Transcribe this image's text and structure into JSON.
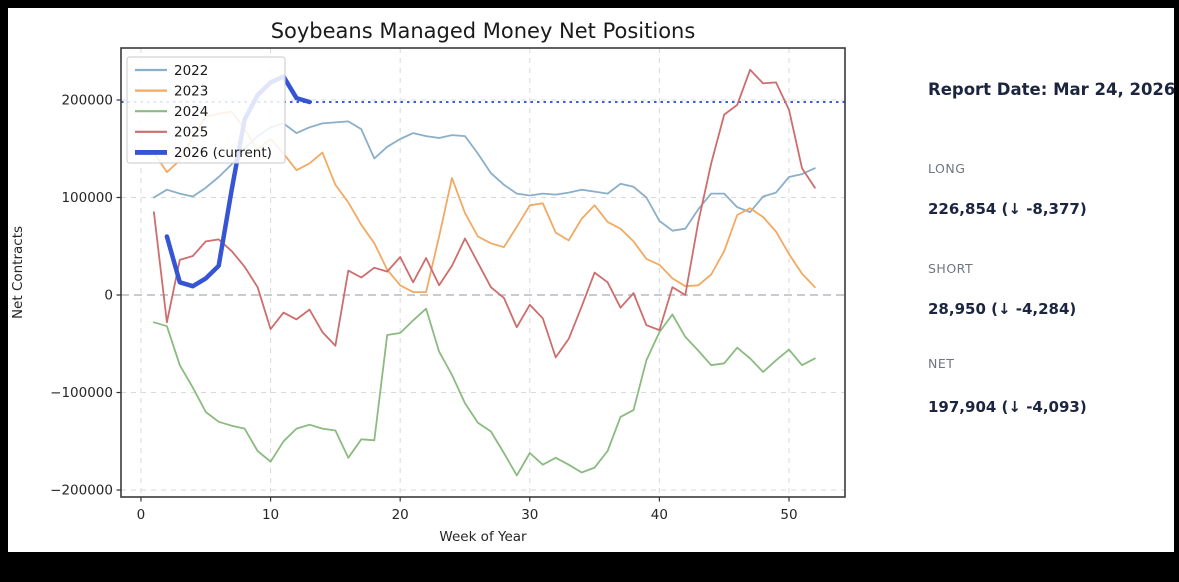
{
  "window": {
    "background": "#000000",
    "card_background": "#ffffff"
  },
  "chart_data": {
    "type": "line",
    "title": "Soybeans Managed Money Net Positions",
    "xlabel": "Week of Year",
    "ylabel": "Net Contracts",
    "x_ticks": [
      0,
      10,
      20,
      30,
      40,
      50
    ],
    "y_ticks": [
      200000,
      100000,
      0,
      -100000,
      -200000
    ],
    "y_tick_labels": [
      "200000",
      "100000",
      "0",
      "−100000",
      "−200000"
    ],
    "xlim": [
      -1.54,
      54.32
    ],
    "ylim": [
      -207179,
      253333
    ],
    "grid": true,
    "legend_position": "upper-left",
    "colors": {
      "grid": "#d9d9d9",
      "zero_line": "#a6adb5",
      "net_dotted_line": "#3c5ed8",
      "spine": "#3a3a3a",
      "tick_text": "#262626",
      "title_text": "#1a1a1a"
    },
    "reference_lines": [
      {
        "name": "zero",
        "value": 0,
        "style": "dashed",
        "color": "#a6adb5",
        "width": 1.3
      },
      {
        "name": "current-net",
        "value": 197904,
        "style": "dotted",
        "color": "#3c5ed8",
        "width": 2
      }
    ],
    "series": [
      {
        "name": "2022",
        "color": "#8aafc8",
        "width": 1.8,
        "start_week": 1,
        "values": [
          100000,
          108000,
          104000,
          101000,
          110000,
          121000,
          134000,
          150000,
          163000,
          172000,
          176000,
          166000,
          172000,
          176000,
          177000,
          178000,
          170000,
          140000,
          152000,
          160000,
          166000,
          163000,
          161000,
          164000,
          163000,
          145000,
          125000,
          113000,
          104000,
          102000,
          104000,
          103000,
          105000,
          108000,
          106000,
          104000,
          114000,
          111000,
          100000,
          76000,
          66000,
          68000,
          88000,
          104000,
          104000,
          90000,
          85000,
          101000,
          105000,
          121000,
          124000,
          130000
        ]
      },
      {
        "name": "2023",
        "color": "#f2aa63",
        "width": 1.8,
        "start_week": 1,
        "values": [
          146000,
          126000,
          138000,
          162000,
          183000,
          186000,
          188000,
          170000,
          149000,
          160000,
          145000,
          128000,
          135000,
          146000,
          113000,
          95000,
          72000,
          53000,
          26000,
          10000,
          3000,
          3000,
          60000,
          120000,
          84000,
          60000,
          53000,
          49000,
          70000,
          92000,
          94000,
          64000,
          56000,
          78000,
          92000,
          75000,
          68000,
          55000,
          37000,
          31000,
          17000,
          9000,
          10000,
          21000,
          45000,
          82000,
          89000,
          80000,
          65000,
          42000,
          22000,
          8000
        ]
      },
      {
        "name": "2024",
        "color": "#8abb80",
        "width": 1.8,
        "start_week": 1,
        "values": [
          -28000,
          -32000,
          -72000,
          -95000,
          -120000,
          -130000,
          -134000,
          -137000,
          -160000,
          -171000,
          -150000,
          -137000,
          -133000,
          -137000,
          -139000,
          -167000,
          -148000,
          -149000,
          -41000,
          -39000,
          -26000,
          -14000,
          -58000,
          -82000,
          -111000,
          -131000,
          -140000,
          -162000,
          -185000,
          -162000,
          -174000,
          -167000,
          -174000,
          -182000,
          -177000,
          -160000,
          -125000,
          -118000,
          -67000,
          -38000,
          -20000,
          -43000,
          -57000,
          -72000,
          -70000,
          -54000,
          -65000,
          -79000,
          -67000,
          -56000,
          -72000,
          -65000
        ]
      },
      {
        "name": "2025",
        "color": "#cd6d6d",
        "width": 1.8,
        "start_week": 1,
        "values": [
          85000,
          -28000,
          36000,
          40000,
          55000,
          57000,
          45000,
          29000,
          8000,
          -35000,
          -18000,
          -25000,
          -15000,
          -38000,
          -52000,
          25000,
          18000,
          28000,
          24000,
          39000,
          13000,
          38000,
          10000,
          30000,
          58000,
          33000,
          8000,
          -3000,
          -33000,
          -10000,
          -24000,
          -64000,
          -45000,
          -12000,
          23000,
          13000,
          -13000,
          2000,
          -31000,
          -36000,
          8000,
          0,
          75000,
          135000,
          185000,
          195000,
          231000,
          217000,
          218000,
          190000,
          130000,
          110000
        ]
      },
      {
        "name": "2026 (current)",
        "color": "#3555d4",
        "width": 4.5,
        "start_week": 2,
        "values": [
          60000,
          13000,
          9000,
          17000,
          30000,
          108000,
          180000,
          205000,
          218000,
          224000,
          201997,
          197904
        ]
      }
    ]
  },
  "sidebar": {
    "report_date": "Report Date: Mar 24, 2026",
    "stats": [
      {
        "label": "LONG",
        "value": "226,854 (↓ -8,377)"
      },
      {
        "label": "SHORT",
        "value": "28,950 (↓ -4,284)"
      },
      {
        "label": "NET",
        "value": "197,904 (↓ -4,093)"
      }
    ],
    "label_color": "#6f7680",
    "value_color": "#1c2540"
  }
}
